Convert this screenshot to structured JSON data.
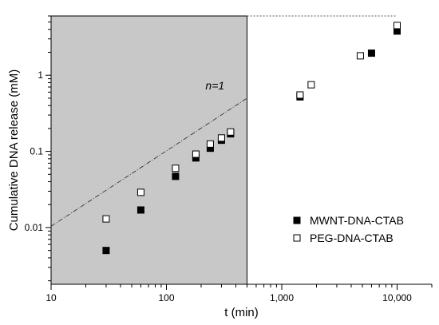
{
  "chart_data": {
    "type": "scatter",
    "xlabel": "t (min)",
    "ylabel": "Cumulative DNA release (mM)",
    "x_scale": "log",
    "y_scale": "log",
    "xlim": [
      10,
      20000
    ],
    "ylim": [
      0.0018,
      6
    ],
    "x_ticks": [
      {
        "value": 10,
        "label": "10"
      },
      {
        "value": 100,
        "label": "100"
      },
      {
        "value": 1000,
        "label": "1,000"
      },
      {
        "value": 10000,
        "label": "10,000"
      }
    ],
    "y_ticks": [
      {
        "value": 0.01,
        "label": "0.01"
      },
      {
        "value": 0.1,
        "label": "0.1"
      },
      {
        "value": 1,
        "label": "1"
      }
    ],
    "series": [
      {
        "name": "MWNT-DNA-CTAB",
        "marker": "filled-square",
        "color": "#000000",
        "points": [
          {
            "x": 30,
            "y": 0.005
          },
          {
            "x": 60,
            "y": 0.017
          },
          {
            "x": 120,
            "y": 0.047
          },
          {
            "x": 180,
            "y": 0.082
          },
          {
            "x": 240,
            "y": 0.11
          },
          {
            "x": 300,
            "y": 0.14
          },
          {
            "x": 360,
            "y": 0.17
          },
          {
            "x": 1440,
            "y": 0.52
          },
          {
            "x": 6000,
            "y": 1.95
          },
          {
            "x": 10000,
            "y": 3.8
          }
        ]
      },
      {
        "name": "PEG-DNA-CTAB",
        "marker": "open-square",
        "color": "#000000",
        "points": [
          {
            "x": 30,
            "y": 0.013
          },
          {
            "x": 60,
            "y": 0.029
          },
          {
            "x": 120,
            "y": 0.06
          },
          {
            "x": 180,
            "y": 0.092
          },
          {
            "x": 240,
            "y": 0.125
          },
          {
            "x": 300,
            "y": 0.15
          },
          {
            "x": 360,
            "y": 0.18
          },
          {
            "x": 1440,
            "y": 0.55
          },
          {
            "x": 1800,
            "y": 0.75
          },
          {
            "x": 4800,
            "y": 1.8
          },
          {
            "x": 10000,
            "y": 4.5
          }
        ]
      }
    ],
    "shaded_region": {
      "x0": 10,
      "x1": 500,
      "color": "#c8c8c8"
    },
    "reference_line": {
      "x0": 10,
      "y0": 0.0104,
      "x1": 500,
      "y1": 0.5,
      "label": "n=1",
      "label_x": 330,
      "label_y": 0.62
    },
    "saturation_line": {
      "y": 6,
      "x0": 500,
      "x1": 10000
    },
    "legend_position": "bottom-right",
    "grid": false
  }
}
